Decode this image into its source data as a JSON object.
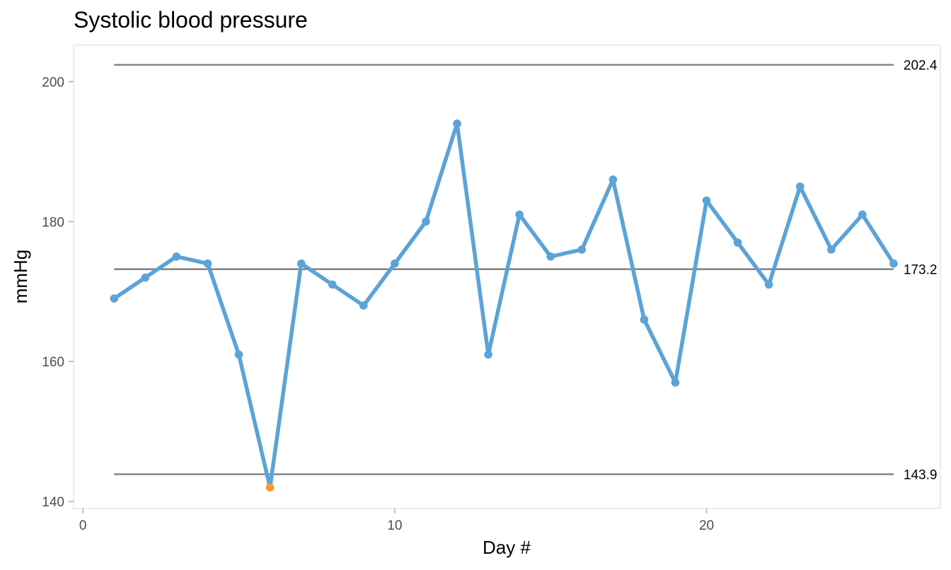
{
  "chart_data": {
    "type": "line",
    "title": "Systolic blood pressure",
    "xlabel": "Day #",
    "ylabel": "mmHg",
    "xlim": [
      -0.3,
      27.5
    ],
    "ylim": [
      139,
      205.2
    ],
    "x_ticks": [
      0,
      10,
      20
    ],
    "y_ticks": [
      140,
      160,
      180,
      200
    ],
    "grid": false,
    "x": [
      1,
      2,
      3,
      4,
      5,
      6,
      7,
      8,
      9,
      10,
      11,
      12,
      13,
      14,
      15,
      16,
      17,
      18,
      19,
      20,
      21,
      22,
      23,
      24,
      25,
      26
    ],
    "series": [
      {
        "values": [
          169,
          172,
          175,
          174,
          161,
          142,
          174,
          171,
          168,
          174,
          180,
          194,
          161,
          181,
          175,
          176,
          186,
          166,
          157,
          183,
          177,
          171,
          185,
          176,
          181,
          174
        ]
      }
    ],
    "reference_lines": [
      {
        "value": 202.4,
        "label": "202.4"
      },
      {
        "value": 173.2,
        "label": "173.2"
      },
      {
        "value": 143.9,
        "label": "143.9"
      }
    ],
    "highlighted_points": [
      6
    ],
    "colors": {
      "series": "#5ba3d8",
      "highlight": "#f39c33",
      "reference": "#7f7f7f",
      "panel_border": "#e0e0e0",
      "axis_tick": "#a6a6a6"
    }
  }
}
